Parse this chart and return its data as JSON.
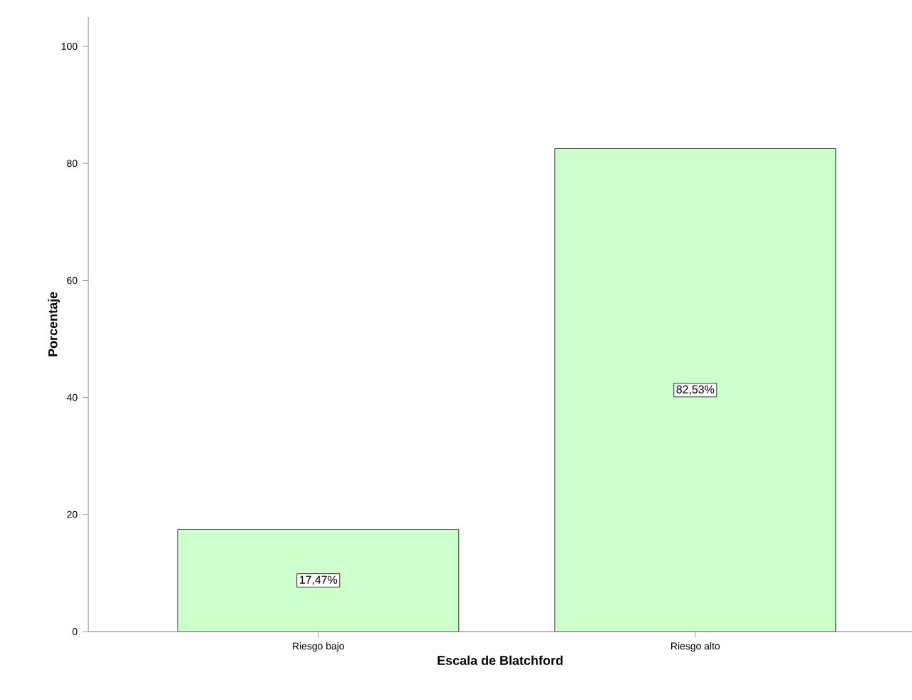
{
  "chart_data": {
    "type": "bar",
    "xlabel": "Escala de Blatchford",
    "ylabel": "Porcentaje",
    "categories": [
      "Riesgo bajo",
      "Riesgo alto"
    ],
    "values": [
      17.47,
      82.53
    ],
    "value_labels": [
      "17,47%",
      "82,53%"
    ],
    "color": "#ccffcc",
    "ylim": [
      0,
      105
    ],
    "yticks": [
      0,
      20,
      40,
      60,
      80,
      100
    ]
  }
}
